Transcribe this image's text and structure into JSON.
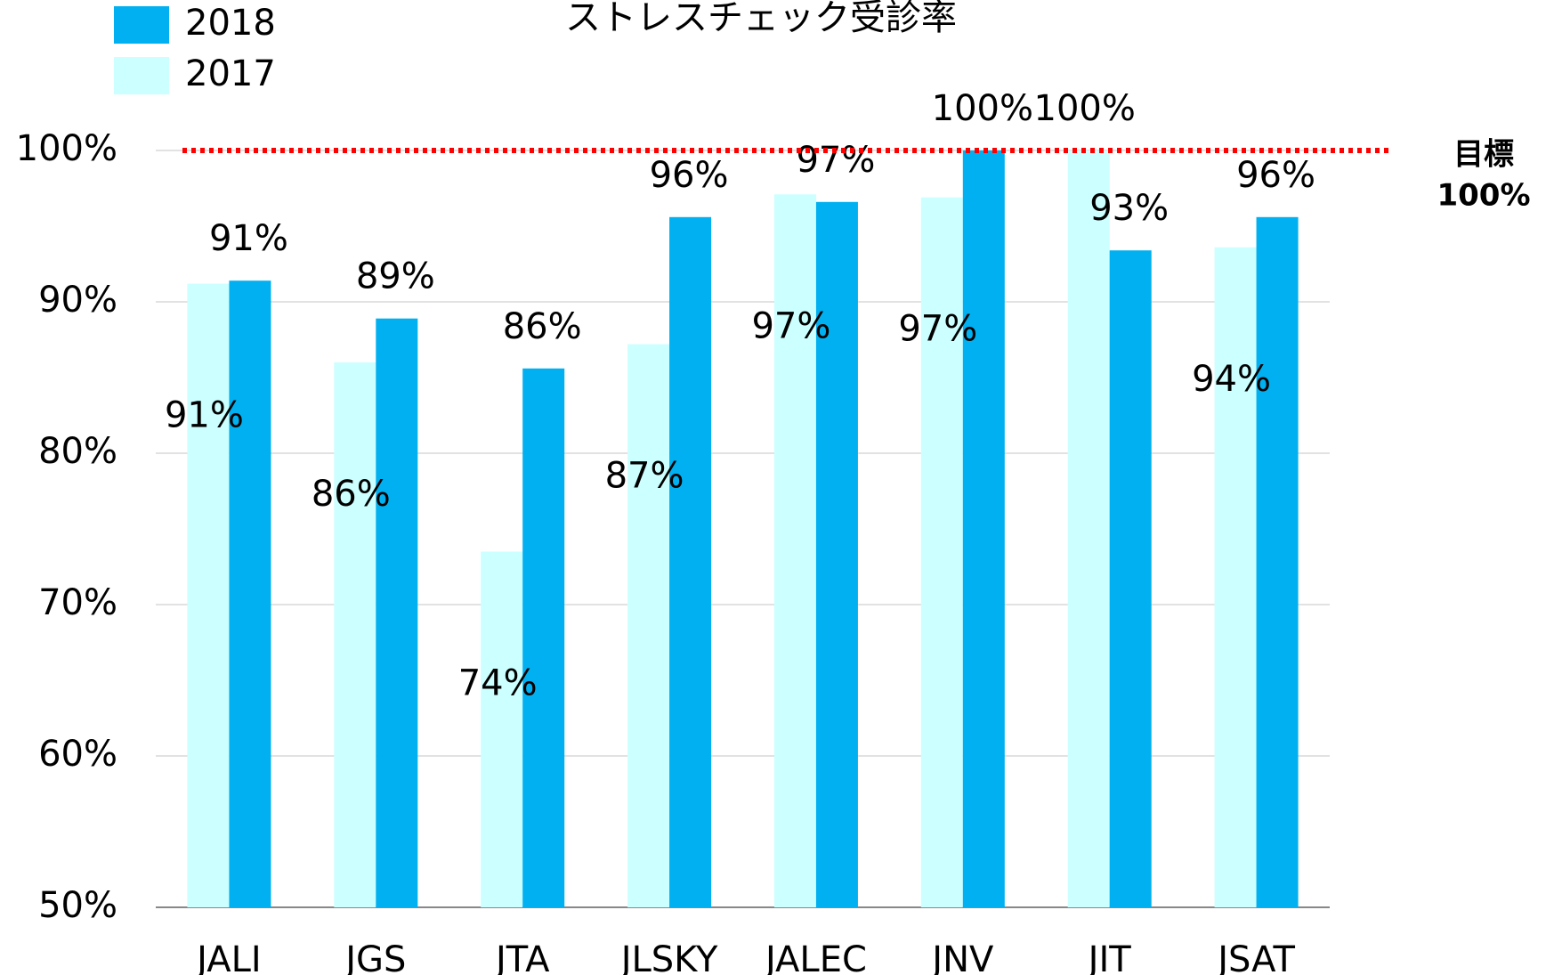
{
  "chart_data": {
    "type": "bar",
    "title": "ストレスチェック受診率",
    "categories": [
      "JALI",
      "JGS",
      "JTA",
      "JLSKY",
      "JALEC",
      "JNV",
      "JIT",
      "JSAT"
    ],
    "series": [
      {
        "name": "2017",
        "color": "#ccffff",
        "values": [
          91.2,
          86,
          73.5,
          87.2,
          97.1,
          96.9,
          100,
          93.6
        ],
        "value_labels": [
          "91%",
          "86%",
          "74%",
          "87%",
          "97%",
          "97%",
          "100%",
          "94%"
        ]
      },
      {
        "name": "2018",
        "color": "#00b0f0",
        "values": [
          91.4,
          88.9,
          85.6,
          95.6,
          96.6,
          100,
          93.4,
          95.6
        ],
        "value_labels": [
          "91%",
          "89%",
          "86%",
          "96%",
          "97%",
          "100%",
          "93%",
          "96%"
        ]
      }
    ],
    "ylim": [
      50,
      100
    ],
    "yticks": [
      {
        "value": 50,
        "label": "50%"
      },
      {
        "value": 60,
        "label": "60%"
      },
      {
        "value": 70,
        "label": "70%"
      },
      {
        "value": 80,
        "label": "80%"
      },
      {
        "value": 90,
        "label": "90%"
      },
      {
        "value": 100,
        "label": "100%"
      }
    ],
    "grid": true,
    "legend": "top-left",
    "target": {
      "value": 100,
      "labels": [
        "目標",
        "100%"
      ],
      "color": "#ff0000"
    }
  }
}
